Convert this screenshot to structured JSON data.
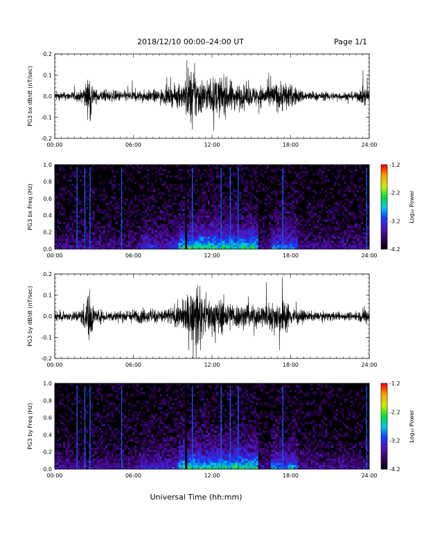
{
  "header": {
    "title": "2018/12/10   00:00–24:00 UT",
    "page": "Page 1/1"
  },
  "xaxis_label": "Universal Time (hh:mm)",
  "colorbar_label": "Log₁₀ Power",
  "chart_data": [
    {
      "type": "line",
      "id": "bx_dbdt",
      "ylabel": "PG3 bx dB/dt (nT/sec)",
      "xlim": [
        0,
        24
      ],
      "ylim": [
        -0.2,
        0.2
      ],
      "yticks": [
        "0.2",
        "0.1",
        "0.0",
        "-0.1",
        "-0.2"
      ],
      "xticks": [
        "00:00",
        "06:00",
        "12:00",
        "18:00",
        "24:00"
      ],
      "series": [
        {
          "color": "#000000"
        }
      ],
      "activity_envelope": {
        "hours": [
          0,
          1,
          2,
          2.5,
          2.7,
          3.0,
          4,
          5,
          6,
          7,
          8,
          9,
          9.8,
          10.2,
          10.6,
          11.0,
          11.5,
          12,
          12.5,
          13,
          13.5,
          14,
          15,
          16,
          17,
          17.5,
          18,
          19,
          20,
          21,
          22,
          23,
          23.8,
          24
        ],
        "amplitude": [
          0.03,
          0.03,
          0.04,
          0.12,
          0.2,
          0.05,
          0.04,
          0.04,
          0.04,
          0.04,
          0.05,
          0.07,
          0.09,
          0.2,
          0.2,
          0.15,
          0.11,
          0.13,
          0.14,
          0.13,
          0.11,
          0.09,
          0.07,
          0.08,
          0.1,
          0.12,
          0.08,
          0.04,
          0.03,
          0.03,
          0.03,
          0.03,
          0.08,
          0.04
        ]
      }
    },
    {
      "type": "heatmap",
      "id": "bx_spec",
      "ylabel": "PG3 bx Freq (Hz)",
      "xlim": [
        0,
        24
      ],
      "ylim": [
        0,
        1.0
      ],
      "yticks": [
        "1.0",
        "0.8",
        "0.6",
        "0.4",
        "0.2",
        "0.0"
      ],
      "xticks": [
        "00:00",
        "06:00",
        "12:00",
        "18:00",
        "24:00"
      ],
      "colorbar": {
        "min": -4.2,
        "max": -1.2,
        "ticks": [
          "-1.2",
          "-2.2",
          "-3.2",
          "-4.2"
        ]
      },
      "line_hours": [
        1.7,
        2.3,
        2.7,
        5.1,
        10.0,
        10.5,
        12.7,
        13.4,
        14.0,
        17.4,
        23.8
      ],
      "gap_hours": [
        9.95,
        10.1
      ]
    },
    {
      "type": "line",
      "id": "by_dbdt",
      "ylabel": "PG3 by dB/dt (nT/sec)",
      "xlim": [
        0,
        24
      ],
      "ylim": [
        -0.2,
        0.2
      ],
      "yticks": [
        "0.2",
        "0.1",
        "0.0",
        "-0.1",
        "-0.2"
      ],
      "xticks": [
        "00:00",
        "06:00",
        "12:00",
        "18:00",
        "24:00"
      ],
      "series": [
        {
          "color": "#000000"
        }
      ],
      "activity_envelope": {
        "hours": [
          0,
          1,
          2,
          2.5,
          2.7,
          3.0,
          4,
          5,
          6,
          7,
          8,
          9,
          9.8,
          10.2,
          10.6,
          11.0,
          11.5,
          12,
          12.5,
          13,
          13.5,
          14,
          15,
          16,
          17,
          17.5,
          18,
          19,
          20,
          21,
          22,
          23,
          23.8,
          24
        ],
        "amplitude": [
          0.03,
          0.03,
          0.05,
          0.15,
          0.2,
          0.06,
          0.04,
          0.04,
          0.05,
          0.05,
          0.05,
          0.07,
          0.1,
          0.16,
          0.2,
          0.2,
          0.13,
          0.12,
          0.13,
          0.12,
          0.1,
          0.09,
          0.08,
          0.09,
          0.11,
          0.14,
          0.07,
          0.04,
          0.03,
          0.03,
          0.03,
          0.03,
          0.06,
          0.04
        ]
      }
    },
    {
      "type": "heatmap",
      "id": "by_spec",
      "ylabel": "PG3 by Freq (Hz)",
      "xlim": [
        0,
        24
      ],
      "ylim": [
        0,
        1.0
      ],
      "yticks": [
        "1.0",
        "0.8",
        "0.6",
        "0.4",
        "0.2",
        "0.0"
      ],
      "xticks": [
        "00:00",
        "06:00",
        "12:00",
        "18:00",
        "24:00"
      ],
      "colorbar": {
        "min": -4.2,
        "max": -1.2,
        "ticks": [
          "-1.2",
          "-2.2",
          "-3.2",
          "-4.2"
        ]
      },
      "line_hours": [
        1.7,
        2.3,
        2.7,
        5.1,
        10.0,
        10.5,
        12.7,
        13.4,
        14.0,
        17.4,
        23.8
      ],
      "gap_hours": [
        9.95,
        10.1
      ]
    }
  ]
}
